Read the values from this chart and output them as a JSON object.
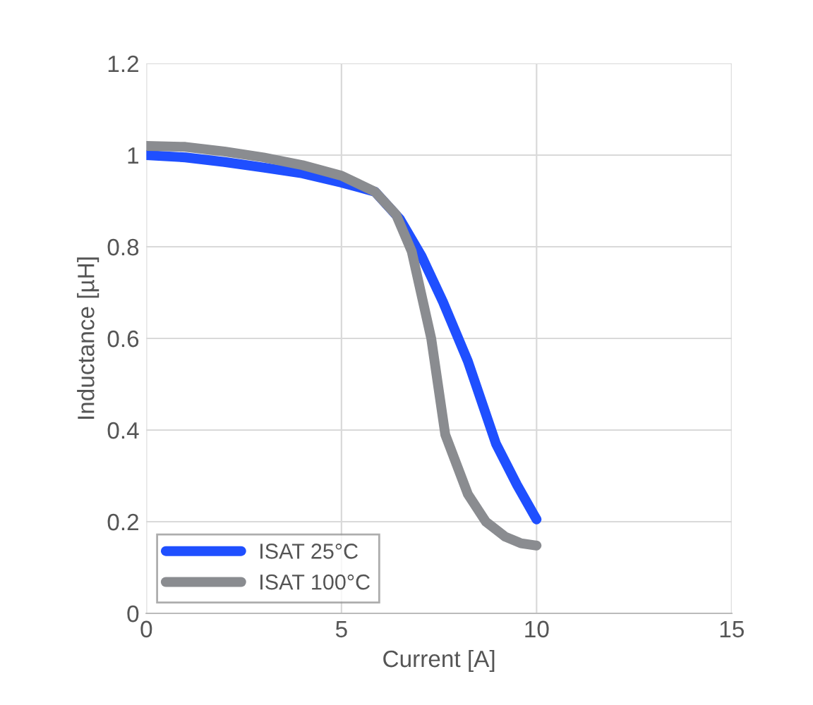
{
  "chart_data": {
    "type": "line",
    "xlabel": "Current [A]",
    "ylabel": "Inductance [µH]",
    "xlim": [
      0,
      15
    ],
    "xticks": [
      0,
      5,
      10,
      15
    ],
    "ylim": [
      0,
      1.2
    ],
    "yticks": [
      0,
      0.2,
      0.4,
      0.6,
      0.8,
      1,
      1.2
    ],
    "grid": true,
    "legend": "bottom left",
    "marker": "none",
    "line_style": "solid",
    "series": [
      {
        "name": "ISAT 25°C",
        "color": "#1f4fff",
        "x": [
          0,
          1,
          2,
          3,
          4,
          5,
          5.86,
          6.5,
          7.05,
          7.6,
          8.24,
          8.96,
          9.5,
          10
        ],
        "values": [
          1.0,
          0.995,
          0.985,
          0.973,
          0.96,
          0.94,
          0.92,
          0.86,
          0.78,
          0.68,
          0.55,
          0.37,
          0.28,
          0.205
        ]
      },
      {
        "name": "ISAT 100°C",
        "color": "#8a8c90",
        "x": [
          0,
          1,
          2,
          3,
          4,
          5,
          5.86,
          6.4,
          6.8,
          7.3,
          7.66,
          8.24,
          8.7,
          9.2,
          9.6,
          10
        ],
        "values": [
          1.02,
          1.018,
          1.008,
          0.995,
          0.978,
          0.955,
          0.92,
          0.87,
          0.79,
          0.6,
          0.39,
          0.26,
          0.2,
          0.167,
          0.153,
          0.148
        ]
      }
    ]
  }
}
